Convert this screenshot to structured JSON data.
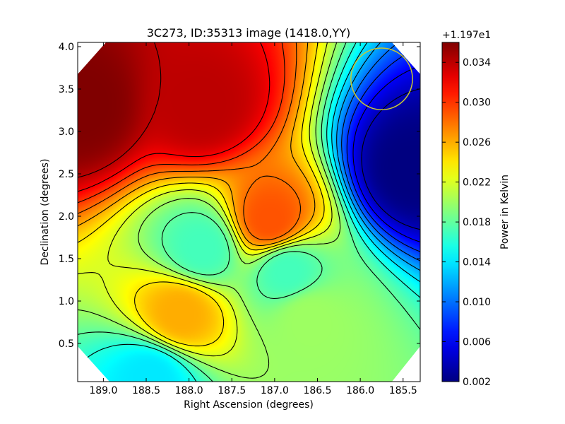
{
  "chart_data": {
    "type": "heatmap",
    "title": "3C273, ID:35313 image (1418.0,YY)",
    "xlabel": "Right Ascension (degrees)",
    "ylabel": "Declination (degrees)",
    "xlim": [
      189.3,
      185.3
    ],
    "ylim": [
      0.05,
      4.05
    ],
    "x_inverted": true,
    "x_ticks": [
      189.0,
      188.5,
      188.0,
      187.5,
      187.0,
      186.5,
      186.0,
      185.5
    ],
    "x_tick_labels": [
      "189.0",
      "188.5",
      "188.0",
      "187.5",
      "187.0",
      "186.5",
      "186.0",
      "185.5"
    ],
    "y_ticks": [
      0.5,
      1.0,
      1.5,
      2.0,
      2.5,
      3.0,
      3.5,
      4.0
    ],
    "y_tick_labels": [
      "0.5",
      "1.0",
      "1.5",
      "2.0",
      "2.5",
      "3.0",
      "3.5",
      "4.0"
    ],
    "colormap": "jet",
    "contours": true,
    "colorbar": {
      "label": "Power in Kelvin",
      "offset_text": "+1.197e1",
      "range": [
        0.002,
        0.036
      ],
      "ticks": [
        0.002,
        0.006,
        0.01,
        0.014,
        0.018,
        0.022,
        0.026,
        0.03,
        0.034
      ],
      "tick_labels": [
        "0.002",
        "0.006",
        "0.010",
        "0.014",
        "0.018",
        "0.022",
        "0.026",
        "0.030",
        "0.034"
      ]
    },
    "field_peaks": [
      {
        "ra": 189.25,
        "dec": 3.3,
        "value": 0.036
      },
      {
        "ra": 187.85,
        "dec": 3.3,
        "value": 0.034
      },
      {
        "ra": 185.4,
        "dec": 2.55,
        "value": 0.002
      },
      {
        "ra": 187.05,
        "dec": 1.95,
        "value": 0.029
      },
      {
        "ra": 187.85,
        "dec": 1.62,
        "value": 0.017
      },
      {
        "ra": 186.85,
        "dec": 1.35,
        "value": 0.017
      },
      {
        "ra": 188.1,
        "dec": 0.85,
        "value": 0.026
      },
      {
        "ra": 188.45,
        "dec": 0.1,
        "value": 0.014
      },
      {
        "ra": 186.6,
        "dec": 0.8,
        "value": 0.02
      }
    ],
    "beam_marker": {
      "ra": 185.75,
      "dec": 3.62,
      "radius_deg": 0.36,
      "color": "#c8c832"
    }
  }
}
